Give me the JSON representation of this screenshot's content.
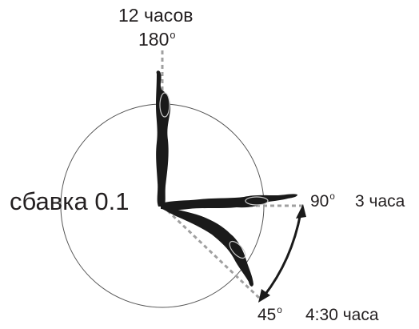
{
  "labels": {
    "top_line1": "12 часов",
    "top_line2_value": "180",
    "main": "сбавка 0.1",
    "right_value": "90",
    "right_time": "3 часа",
    "bottom_value": "45",
    "bottom_time": "4:30 часа",
    "degree_symbol": "o"
  },
  "colors": {
    "silhouette": "#1a1a1a",
    "circle": "#555555",
    "dashed_line": "#a0a0a0",
    "arrow": "#1a1a1a",
    "text": "#231f20"
  }
}
